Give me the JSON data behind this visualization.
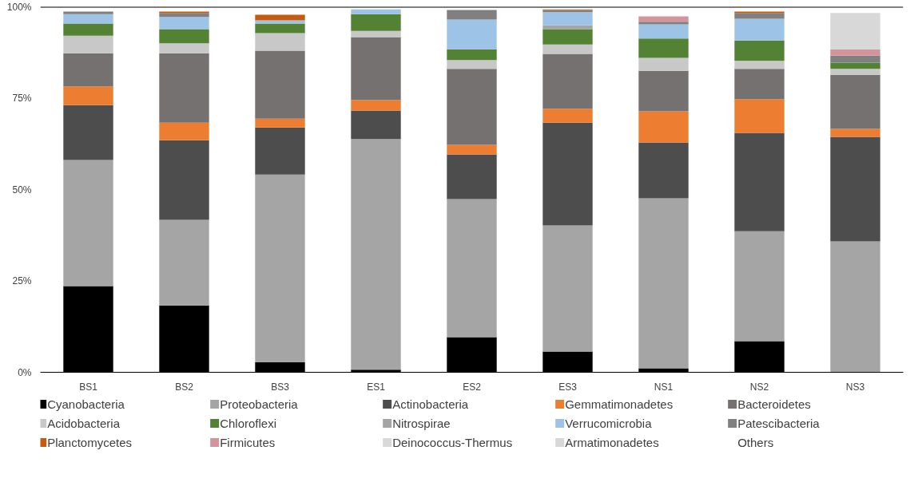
{
  "chart_data": {
    "type": "bar",
    "stacked": true,
    "categories": [
      "BS1",
      "BS2",
      "BS3",
      "ES1",
      "ES2",
      "ES3",
      "NS1",
      "NS2",
      "NS3"
    ],
    "ylim": [
      0,
      100
    ],
    "yticks": [
      {
        "value": 0,
        "label": "0%"
      },
      {
        "value": 25,
        "label": "25%"
      },
      {
        "value": 50,
        "label": "50%"
      },
      {
        "value": 75,
        "label": "75%"
      },
      {
        "value": 100,
        "label": "100%"
      }
    ],
    "grid": false,
    "legend": "bottom",
    "series": [
      {
        "name": "Cyanobacteria",
        "color": "#000000",
        "values": [
          23.6,
          18.3,
          2.8,
          0.7,
          9.6,
          5.7,
          1.1,
          8.5,
          0
        ]
      },
      {
        "name": "Proteobacteria",
        "color": "#a5a5a5",
        "values": [
          34.5,
          23.4,
          51.3,
          63.1,
          37.8,
          34.5,
          46.5,
          30.1,
          35.8
        ]
      },
      {
        "name": "Actinobacteria",
        "color": "#4d4d4d",
        "values": [
          15.0,
          21.8,
          12.9,
          7.8,
          12.2,
          28.1,
          15.3,
          26.9,
          28.6
        ]
      },
      {
        "name": "Gemmatimonadetes",
        "color": "#ed7d31",
        "values": [
          5.1,
          4.8,
          2.4,
          2.9,
          2.6,
          3.8,
          8.5,
          9.2,
          2.2
        ]
      },
      {
        "name": "Bacteroidetes",
        "color": "#767171",
        "values": [
          9.1,
          19.0,
          18.6,
          17.2,
          20.8,
          15.0,
          11.1,
          8.3,
          14.8
        ]
      },
      {
        "name": "Acidobacteria",
        "color": "#c8c8c8",
        "values": [
          4.8,
          2.7,
          4.8,
          1.7,
          2.4,
          2.6,
          3.5,
          2.2,
          1.6
        ]
      },
      {
        "name": "Chloroflexi",
        "color": "#548235",
        "values": [
          3.3,
          3.9,
          2.6,
          4.6,
          3.0,
          4.2,
          5.3,
          5.6,
          1.7
        ]
      },
      {
        "name": "Nitrospirae",
        "color": "#a5a5a5",
        "values": [
          0,
          0,
          0,
          0,
          0,
          1.1,
          0,
          0,
          0
        ]
      },
      {
        "name": "Verrucomicrobia",
        "color": "#9dc3e6",
        "values": [
          2.6,
          3.3,
          0.9,
          1.3,
          8.1,
          3.5,
          3.9,
          5.9,
          0
        ]
      },
      {
        "name": "Patescibacteria",
        "color": "#808080",
        "values": [
          0.7,
          1.1,
          0,
          0,
          2.6,
          0.6,
          0.7,
          1.6,
          2.0
        ]
      },
      {
        "name": "Planctomycetes",
        "color": "#c55a11",
        "values": [
          0,
          0.4,
          1.5,
          0,
          0,
          0.2,
          0,
          0.4,
          0
        ]
      },
      {
        "name": "Firmicutes",
        "color": "#d3959b",
        "values": [
          0,
          0,
          0,
          0,
          0,
          0,
          1.5,
          0,
          1.7
        ]
      },
      {
        "name": "Deinococcus-Thermus",
        "color": "#d9d9d9",
        "values": [
          0,
          0,
          0,
          0,
          0,
          0,
          0,
          0,
          0
        ]
      },
      {
        "name": "Armatimonadetes",
        "color": "#d8d8d8",
        "values": [
          0,
          0,
          0,
          0,
          0,
          0,
          0,
          0,
          9.9
        ]
      },
      {
        "name": "Others",
        "values": [
          null,
          null,
          null,
          null,
          null,
          null,
          null,
          null,
          null
        ]
      }
    ]
  }
}
